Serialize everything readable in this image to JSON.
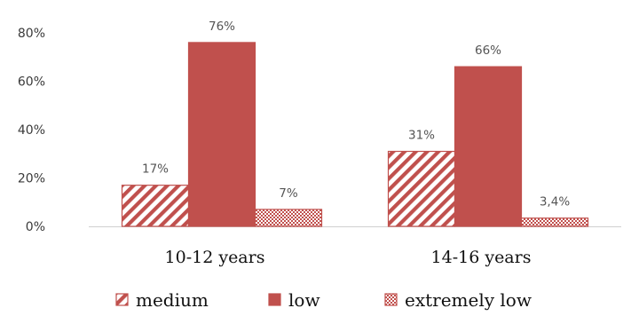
{
  "chart_data": {
    "type": "bar",
    "categories": [
      "10-12 years",
      "14-16 years"
    ],
    "series": [
      {
        "name": "medium",
        "values": [
          17,
          31
        ],
        "labels": [
          "17%",
          "31%"
        ],
        "color": "#c0504d",
        "pattern": "diagonal-hatch"
      },
      {
        "name": "low",
        "values": [
          76,
          66
        ],
        "labels": [
          "76%",
          "66%"
        ],
        "color": "#c0504d",
        "pattern": "solid"
      },
      {
        "name": "extremely low",
        "values": [
          7,
          3.4
        ],
        "labels": [
          "7%",
          "3,4%"
        ],
        "color": "#c0504d",
        "pattern": "checker"
      }
    ],
    "ylim": [
      0,
      80
    ],
    "yticks": [
      0,
      20,
      40,
      60,
      80
    ],
    "ytick_labels": [
      "0%",
      "20%",
      "40%",
      "60%",
      "80%"
    ],
    "grid": false,
    "legend": "bottom",
    "title": "",
    "xlabel": "",
    "ylabel": ""
  }
}
